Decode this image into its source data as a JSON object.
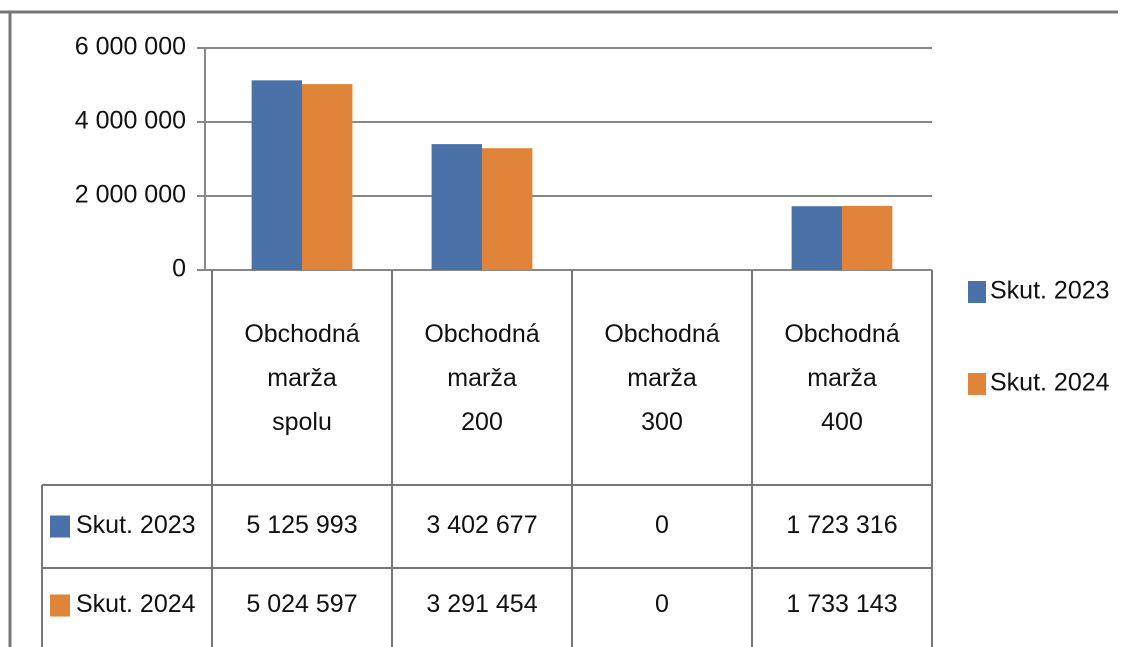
{
  "chart_data": {
    "type": "bar",
    "categories": [
      "Obchodná marža spolu",
      "Obchodná marža 200",
      "Obchodná marža 300",
      "Obchodná marža 400"
    ],
    "series": [
      {
        "name": "Skut. 2023",
        "color": "#4a71a8",
        "values": [
          5125993,
          3402677,
          0,
          1723316
        ],
        "value_labels": [
          "5 125 993",
          "3 402 677",
          "0",
          "1 723 316"
        ]
      },
      {
        "name": "Skut. 2024",
        "color": "#e0843a",
        "values": [
          5024597,
          3291454,
          0,
          1733143
        ],
        "value_labels": [
          "5 024 597",
          "3 291 454",
          "0",
          "1 733 143"
        ]
      }
    ],
    "ylim": [
      0,
      6000000
    ],
    "yticks": [
      0,
      {
        "value": 2000000,
        "label": "2 000 000"
      },
      {
        "value": 4000000,
        "label": "4 000 000"
      },
      {
        "value": 6000000,
        "label": "6 000 000"
      }
    ],
    "grid": true,
    "legend": "right",
    "data_table": true
  }
}
